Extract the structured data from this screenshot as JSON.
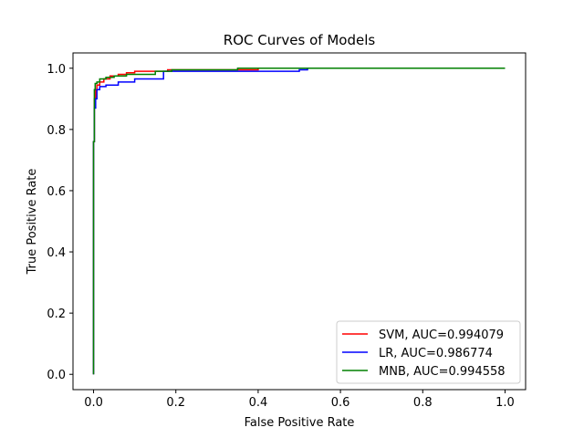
{
  "chart_data": {
    "type": "line",
    "title": "ROC Curves of Models",
    "xlabel": "False Positive Rate",
    "ylabel": "True Positive Rate",
    "xlim": [
      -0.05,
      1.05
    ],
    "ylim": [
      -0.05,
      1.05
    ],
    "xticks": [
      0.0,
      0.2,
      0.4,
      0.6,
      0.8,
      1.0
    ],
    "yticks": [
      0.0,
      0.2,
      0.4,
      0.6,
      0.8,
      1.0
    ],
    "xtick_labels": [
      "0.0",
      "0.2",
      "0.4",
      "0.6",
      "0.8",
      "1.0"
    ],
    "ytick_labels": [
      "0.0",
      "0.2",
      "0.4",
      "0.6",
      "0.8",
      "1.0"
    ],
    "grid": false,
    "legend_position": "lower-right",
    "series": [
      {
        "name": "SVM, AUC=0.994079",
        "color": "#ff0000",
        "x": [
          0,
          0,
          0.002,
          0.002,
          0.005,
          0.005,
          0.008,
          0.008,
          0.015,
          0.015,
          0.025,
          0.025,
          0.04,
          0.04,
          0.06,
          0.06,
          0.08,
          0.08,
          0.1,
          0.1,
          0.18,
          0.18,
          0.4,
          0.4,
          1.0
        ],
        "y": [
          0,
          0.76,
          0.76,
          0.9,
          0.9,
          0.93,
          0.93,
          0.945,
          0.945,
          0.955,
          0.955,
          0.965,
          0.965,
          0.975,
          0.975,
          0.98,
          0.98,
          0.985,
          0.985,
          0.99,
          0.99,
          0.995,
          0.995,
          1.0,
          1.0
        ]
      },
      {
        "name": "LR, AUC=0.986774",
        "color": "#0000ff",
        "x": [
          0,
          0,
          0.002,
          0.002,
          0.005,
          0.005,
          0.008,
          0.008,
          0.015,
          0.015,
          0.03,
          0.03,
          0.06,
          0.06,
          0.1,
          0.1,
          0.17,
          0.17,
          0.38,
          0.38,
          0.5,
          0.5,
          0.52,
          0.52,
          1.0
        ],
        "y": [
          0,
          0.76,
          0.76,
          0.87,
          0.87,
          0.9,
          0.9,
          0.93,
          0.93,
          0.94,
          0.94,
          0.945,
          0.945,
          0.955,
          0.955,
          0.965,
          0.965,
          0.99,
          0.99,
          0.99,
          0.99,
          0.995,
          0.995,
          1.0,
          1.0
        ]
      },
      {
        "name": "MNB, AUC=0.994558",
        "color": "#008000",
        "x": [
          0,
          0,
          0.002,
          0.002,
          0.004,
          0.004,
          0.008,
          0.008,
          0.015,
          0.015,
          0.03,
          0.03,
          0.05,
          0.05,
          0.08,
          0.08,
          0.1,
          0.1,
          0.15,
          0.15,
          0.19,
          0.19,
          0.35,
          0.35,
          1.0
        ],
        "y": [
          0,
          0.76,
          0.76,
          0.93,
          0.93,
          0.95,
          0.95,
          0.955,
          0.955,
          0.965,
          0.965,
          0.97,
          0.97,
          0.975,
          0.975,
          0.98,
          0.98,
          0.98,
          0.98,
          0.99,
          0.99,
          0.995,
          0.995,
          1.0,
          1.0
        ]
      }
    ]
  }
}
